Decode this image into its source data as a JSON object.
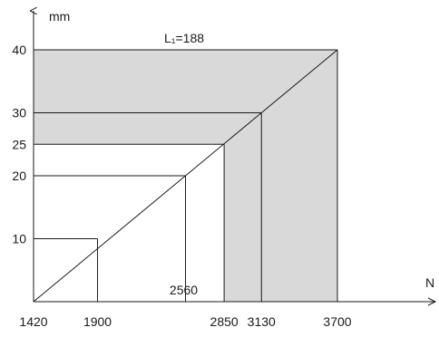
{
  "chart_data": {
    "type": "area",
    "title": "",
    "xlabel": "N",
    "ylabel": "mm",
    "xlim": [
      1420,
      4200
    ],
    "ylim": [
      0,
      46
    ],
    "x_ticks": [
      1420,
      1900,
      2850,
      3130,
      3700
    ],
    "y_ticks": [
      10,
      20,
      25,
      30,
      40
    ],
    "annotation": "L₁=188",
    "annotation_point": {
      "x": 2550,
      "y": 40
    },
    "diagonal": [
      [
        1420,
        0
      ],
      [
        3700,
        40
      ]
    ],
    "extra_label": {
      "text": "2560",
      "x": 2560,
      "y": 0
    },
    "shaded_region": [
      [
        1420,
        40
      ],
      [
        3700,
        40
      ],
      [
        3700,
        0
      ],
      [
        2850,
        0
      ],
      [
        2850,
        25
      ],
      [
        1420,
        25
      ]
    ],
    "reference_lines": [
      {
        "y": 10,
        "x_end": 1900
      },
      {
        "y": 20,
        "x_end": 2560
      },
      {
        "y": 25,
        "x_end": 2850
      },
      {
        "y": 30,
        "x_end": 3130
      },
      {
        "y": 40,
        "x_end": 3700
      }
    ],
    "shade_color": "#d9d9d9",
    "line_color": "#1a1a1a",
    "grid": false
  }
}
